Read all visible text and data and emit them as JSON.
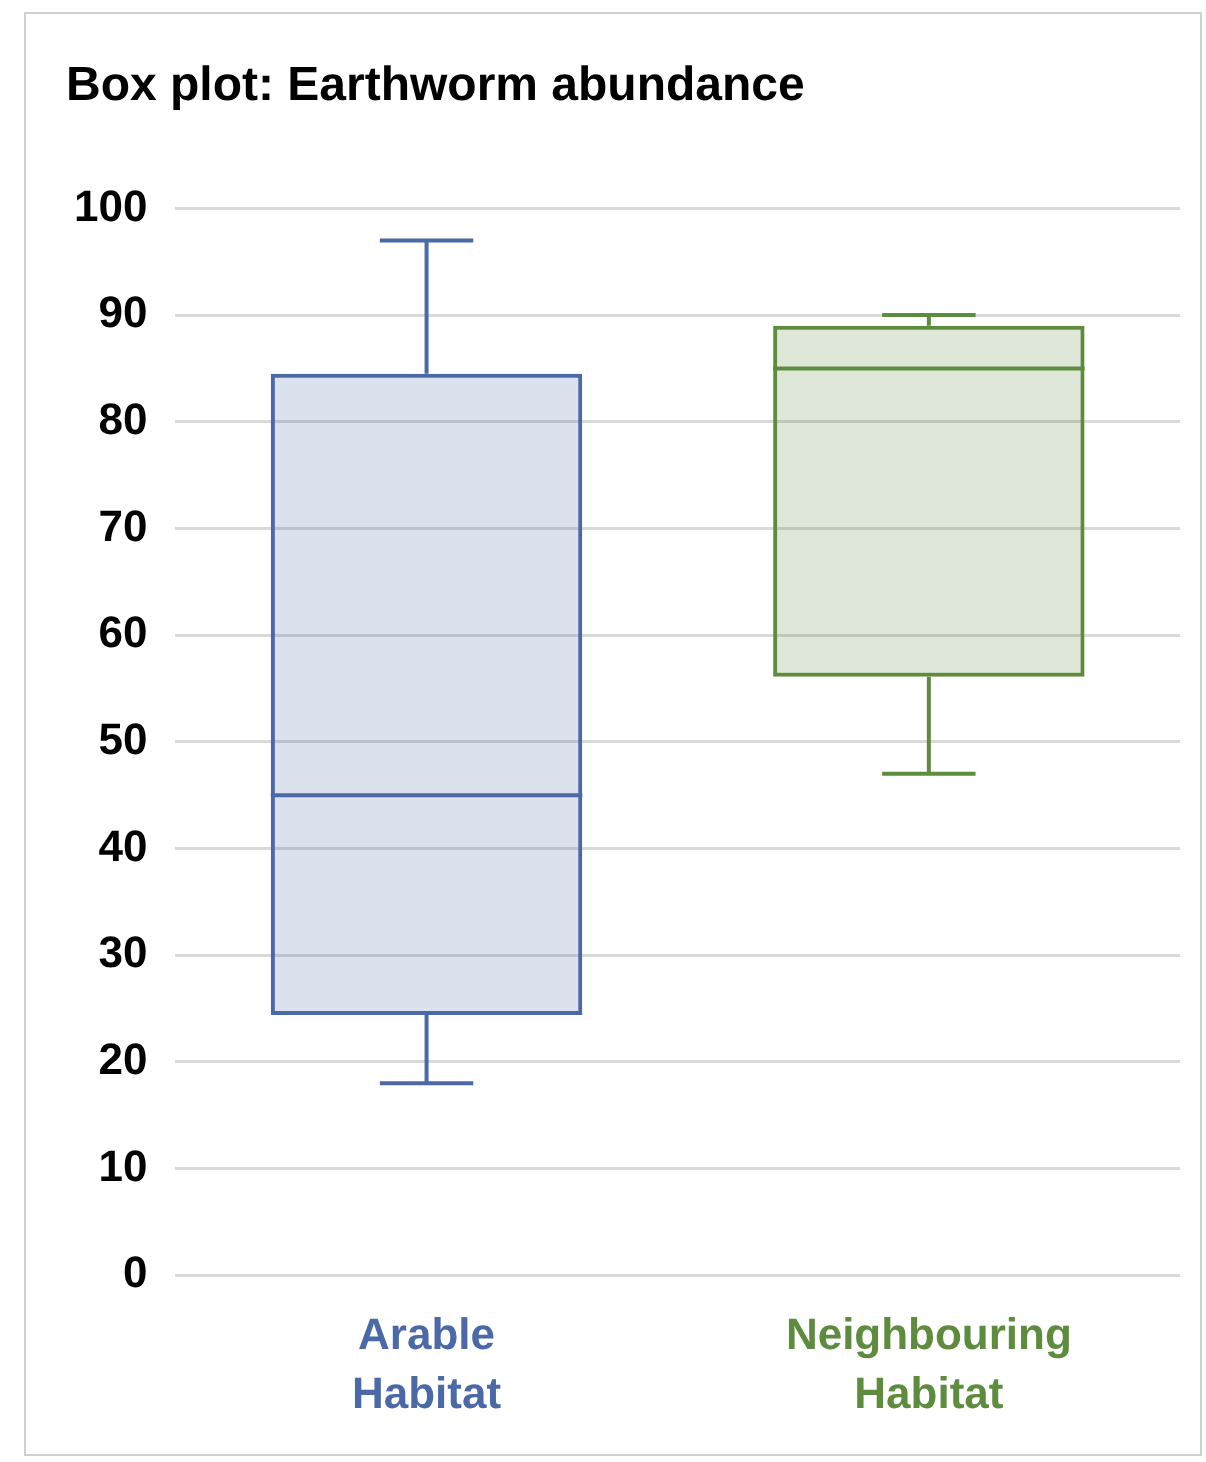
{
  "chart_data": {
    "type": "box",
    "title": "Box plot: Earthworm abundance",
    "categories": [
      "Arable Habitat",
      "Neighbouring Habitat"
    ],
    "boxes": [
      {
        "low": 18,
        "q1": 24.4,
        "median": 45,
        "q3": 84.5,
        "high": 97
      },
      {
        "low": 47,
        "q1": 56.1,
        "median": 85,
        "q3": 89,
        "high": 90
      }
    ],
    "colors": [
      "#4a69a6",
      "#5e8c3e"
    ],
    "ylim": [
      0,
      100
    ],
    "yticks": [
      0,
      10,
      20,
      30,
      40,
      50,
      60,
      70,
      80,
      90,
      100
    ],
    "grid": "y",
    "legend": false
  }
}
